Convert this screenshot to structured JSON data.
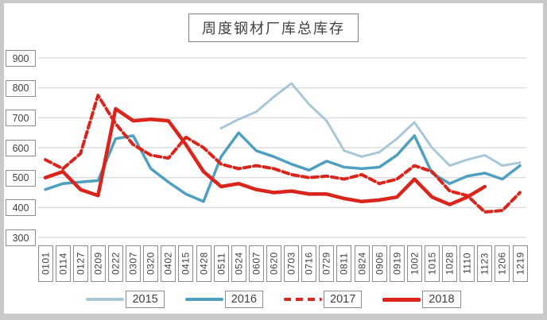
{
  "chart_data": {
    "type": "line",
    "title": "周度钢材厂库总库存",
    "xlabel": "",
    "ylabel": "",
    "ylim": [
      300,
      900
    ],
    "y_ticks": [
      300,
      400,
      500,
      600,
      700,
      800,
      900
    ],
    "grid": true,
    "grid_color": "#d6d6d6",
    "legend_position": "bottom",
    "categories": [
      "0101",
      "0114",
      "0127",
      "0209",
      "0222",
      "0307",
      "0320",
      "0402",
      "0415",
      "0428",
      "0511",
      "0524",
      "0607",
      "0620",
      "0703",
      "0716",
      "0729",
      "0811",
      "0824",
      "0906",
      "0919",
      "1002",
      "1015",
      "1028",
      "1110",
      "1123",
      "1206",
      "1219"
    ],
    "series": [
      {
        "name": "2015",
        "color": "#a8c8d8",
        "style": "solid",
        "width": 3,
        "values": [
          null,
          null,
          null,
          null,
          null,
          null,
          null,
          null,
          null,
          null,
          665,
          695,
          720,
          770,
          815,
          745,
          690,
          590,
          570,
          585,
          630,
          685,
          600,
          540,
          560,
          575,
          540,
          550
        ]
      },
      {
        "name": "2016",
        "color": "#4e9fc0",
        "style": "solid",
        "width": 3.5,
        "values": [
          460,
          480,
          485,
          490,
          630,
          640,
          530,
          485,
          445,
          420,
          570,
          650,
          590,
          570,
          545,
          525,
          555,
          535,
          530,
          535,
          575,
          640,
          515,
          480,
          505,
          515,
          495,
          540
        ]
      },
      {
        "name": "2017",
        "color": "#da251d",
        "style": "dashed",
        "width": 4,
        "values": [
          560,
          530,
          580,
          775,
          680,
          610,
          575,
          565,
          635,
          600,
          545,
          530,
          540,
          530,
          510,
          500,
          505,
          495,
          510,
          480,
          495,
          540,
          520,
          455,
          440,
          385,
          390,
          450
        ]
      },
      {
        "name": "2018",
        "color": "#da251d",
        "style": "solid",
        "width": 4.5,
        "values": [
          500,
          520,
          460,
          440,
          730,
          690,
          695,
          690,
          610,
          520,
          470,
          480,
          460,
          450,
          455,
          445,
          445,
          430,
          420,
          425,
          435,
          495,
          435,
          410,
          435,
          470,
          null,
          null
        ]
      }
    ]
  }
}
